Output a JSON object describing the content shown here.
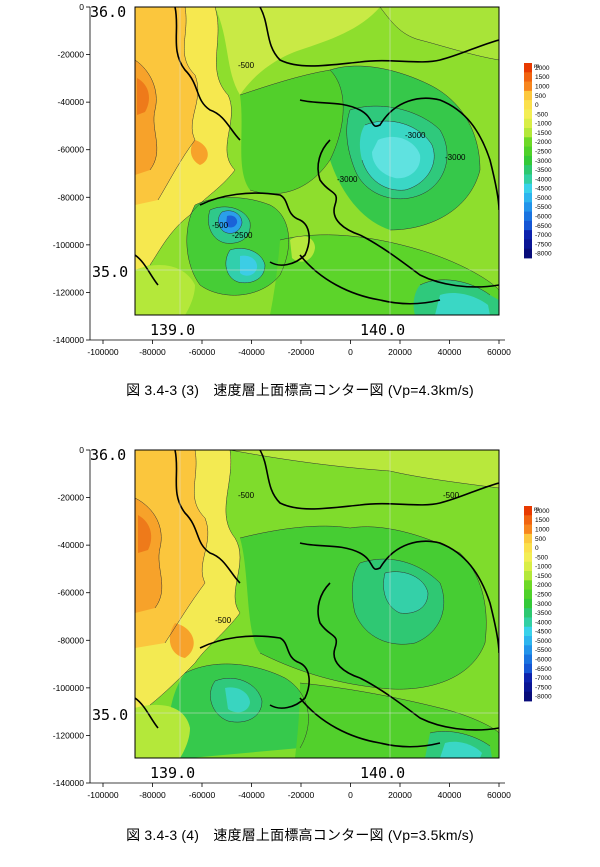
{
  "colors": {
    "legend_ramp": [
      "#e83a00",
      "#f16410",
      "#f7861e",
      "#fbab2f",
      "#fcc83e",
      "#fbe04c",
      "#f3ee55",
      "#d9ee47",
      "#b4e83a",
      "#8fe02e",
      "#6ed927",
      "#4fd12a",
      "#34c938",
      "#2ec870",
      "#33d0a3",
      "#3bdcd3",
      "#3ad2ea",
      "#2eb5ee",
      "#2394ea",
      "#1a74e0",
      "#1556d4",
      "#1139c4",
      "#0d22ad",
      "#0a1594",
      "#080c7a"
    ],
    "coast": "#000000",
    "grid": "#555555"
  },
  "maps": [
    {
      "id": "vp43",
      "caption": "図 3.4-3 (3)　速度層上面標高コンター図 (Vp=4.3km/s)",
      "y_ticks": [
        "0",
        "-20000",
        "-40000",
        "-60000",
        "-80000",
        "-100000",
        "-120000",
        "-140000"
      ],
      "x_ticks": [
        "-100000",
        "-80000",
        "-60000",
        "-40000",
        "-20000",
        "0",
        "20000",
        "40000",
        "60000"
      ],
      "lat_labels": [
        "36.0",
        "35.0"
      ],
      "lon_labels": [
        "139.0",
        "140.0"
      ],
      "contour_labels": [
        "-500",
        "-500",
        "-2500",
        "-3000",
        "-3000",
        "-3000"
      ],
      "legend_unit": "m",
      "legend_labels": [
        "2000",
        "1500",
        "1000",
        "500",
        "0",
        "-500",
        "-1000",
        "-1500",
        "-2000",
        "-2500",
        "-3000",
        "-3500",
        "-4000",
        "-4500",
        "-5000",
        "-5500",
        "-6000",
        "-6500",
        "-7000",
        "-7500",
        "-8000"
      ]
    },
    {
      "id": "vp35",
      "caption": "図 3.4-3 (4)　速度層上面標高コンター図 (Vp=3.5km/s)",
      "y_ticks": [
        "0",
        "-20000",
        "-40000",
        "-60000",
        "-80000",
        "-100000",
        "-120000",
        "-140000"
      ],
      "x_ticks": [
        "-100000",
        "-80000",
        "-60000",
        "-40000",
        "-20000",
        "0",
        "20000",
        "40000",
        "60000"
      ],
      "lat_labels": [
        "36.0",
        "35.0"
      ],
      "lon_labels": [
        "139.0",
        "140.0"
      ],
      "contour_labels": [
        "-500",
        "-500",
        "-500"
      ],
      "legend_unit": "m",
      "legend_labels": [
        "2000",
        "1500",
        "1000",
        "500",
        "0",
        "-500",
        "-1000",
        "-1500",
        "-2000",
        "-2500",
        "-3000",
        "-3500",
        "-4000",
        "-4500",
        "-5000",
        "-5500",
        "-6000",
        "-6500",
        "-7000",
        "-7500",
        "-8000"
      ]
    }
  ]
}
